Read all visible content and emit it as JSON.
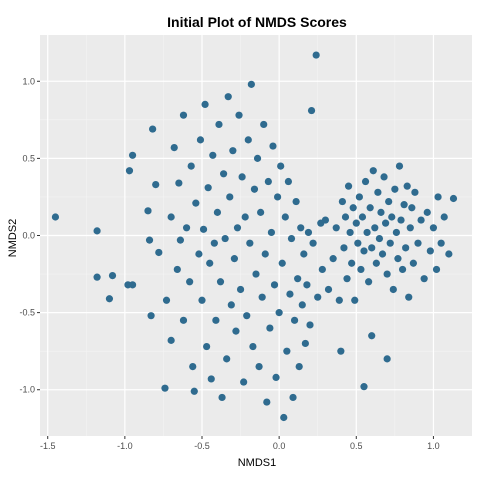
{
  "chart_data": {
    "type": "scatter",
    "title": "Initial Plot of NMDS Scores",
    "xlabel": "NMDS1",
    "ylabel": "NMDS2",
    "xlim": [
      -1.55,
      1.25
    ],
    "ylim": [
      -1.3,
      1.3
    ],
    "x_ticks": [
      -1.5,
      -1.0,
      -0.5,
      0.0,
      0.5,
      1.0
    ],
    "x_tick_labels": [
      "-1.5",
      "-1.0",
      "-0.5",
      "0.0",
      "0.5",
      "1.0"
    ],
    "y_ticks": [
      -1.0,
      -0.5,
      0.0,
      0.5,
      1.0
    ],
    "y_tick_labels": [
      "-1.0",
      "-0.5",
      "0.0",
      "0.5",
      "1.0"
    ],
    "grid": true,
    "legend": "none",
    "colors": {
      "point": "#2f6b8f",
      "panel": "#ebebeb",
      "grid_major": "#ffffff",
      "grid_minor": "#f4f4f4",
      "tick_text": "#4d4d4d"
    },
    "points": [
      {
        "x": -1.45,
        "y": 0.12
      },
      {
        "x": -1.18,
        "y": 0.03
      },
      {
        "x": -1.18,
        "y": -0.27
      },
      {
        "x": -1.1,
        "y": -0.41
      },
      {
        "x": -1.08,
        "y": -0.26
      },
      {
        "x": -0.98,
        "y": -0.32
      },
      {
        "x": -0.95,
        "y": -0.32
      },
      {
        "x": -0.95,
        "y": 0.52
      },
      {
        "x": -0.97,
        "y": 0.42
      },
      {
        "x": -0.85,
        "y": 0.16
      },
      {
        "x": -0.84,
        "y": -0.03
      },
      {
        "x": -0.83,
        "y": -0.52
      },
      {
        "x": -0.82,
        "y": 0.69
      },
      {
        "x": -0.8,
        "y": 0.33
      },
      {
        "x": -0.78,
        "y": -0.11
      },
      {
        "x": -0.74,
        "y": -0.99
      },
      {
        "x": -0.73,
        "y": -0.42
      },
      {
        "x": -0.7,
        "y": 0.12
      },
      {
        "x": -0.7,
        "y": -0.68
      },
      {
        "x": -0.68,
        "y": 0.57
      },
      {
        "x": -0.66,
        "y": -0.22
      },
      {
        "x": -0.65,
        "y": 0.34
      },
      {
        "x": -0.64,
        "y": -0.03
      },
      {
        "x": -0.62,
        "y": 0.78
      },
      {
        "x": -0.62,
        "y": -0.55
      },
      {
        "x": -0.6,
        "y": 0.05
      },
      {
        "x": -0.58,
        "y": -0.3
      },
      {
        "x": -0.57,
        "y": 0.45
      },
      {
        "x": -0.56,
        "y": -0.85
      },
      {
        "x": -0.55,
        "y": -1.01
      },
      {
        "x": -0.54,
        "y": 0.21
      },
      {
        "x": -0.52,
        "y": -0.12
      },
      {
        "x": -0.51,
        "y": 0.62
      },
      {
        "x": -0.5,
        "y": -0.42
      },
      {
        "x": -0.49,
        "y": 0.04
      },
      {
        "x": -0.48,
        "y": 0.85
      },
      {
        "x": -0.47,
        "y": -0.72
      },
      {
        "x": -0.46,
        "y": 0.31
      },
      {
        "x": -0.45,
        "y": -0.18
      },
      {
        "x": -0.44,
        "y": -0.93
      },
      {
        "x": -0.43,
        "y": 0.52
      },
      {
        "x": -0.42,
        "y": -0.05
      },
      {
        "x": -0.41,
        "y": -0.55
      },
      {
        "x": -0.4,
        "y": 0.15
      },
      {
        "x": -0.39,
        "y": 0.72
      },
      {
        "x": -0.38,
        "y": -0.3
      },
      {
        "x": -0.37,
        "y": -1.05
      },
      {
        "x": -0.36,
        "y": 0.4
      },
      {
        "x": -0.35,
        "y": -0.02
      },
      {
        "x": -0.34,
        "y": -0.8
      },
      {
        "x": -0.33,
        "y": 0.9
      },
      {
        "x": -0.32,
        "y": 0.25
      },
      {
        "x": -0.31,
        "y": -0.45
      },
      {
        "x": -0.3,
        "y": 0.55
      },
      {
        "x": -0.29,
        "y": -0.15
      },
      {
        "x": -0.28,
        "y": -0.62
      },
      {
        "x": -0.27,
        "y": 0.05
      },
      {
        "x": -0.26,
        "y": 0.78
      },
      {
        "x": -0.25,
        "y": -0.35
      },
      {
        "x": -0.24,
        "y": 0.38
      },
      {
        "x": -0.23,
        "y": -0.95
      },
      {
        "x": -0.22,
        "y": 0.12
      },
      {
        "x": -0.21,
        "y": -0.52
      },
      {
        "x": -0.2,
        "y": 0.62
      },
      {
        "x": -0.19,
        "y": -0.05
      },
      {
        "x": -0.18,
        "y": 0.98
      },
      {
        "x": -0.17,
        "y": -0.72
      },
      {
        "x": -0.16,
        "y": 0.3
      },
      {
        "x": -0.15,
        "y": -0.25
      },
      {
        "x": -0.14,
        "y": 0.5
      },
      {
        "x": -0.13,
        "y": -0.85
      },
      {
        "x": -0.12,
        "y": 0.15
      },
      {
        "x": -0.11,
        "y": -0.4
      },
      {
        "x": -0.1,
        "y": 0.72
      },
      {
        "x": -0.09,
        "y": -0.12
      },
      {
        "x": -0.08,
        "y": -1.08
      },
      {
        "x": -0.07,
        "y": 0.35
      },
      {
        "x": -0.06,
        "y": -0.6
      },
      {
        "x": -0.05,
        "y": 0.02
      },
      {
        "x": -0.04,
        "y": 0.58
      },
      {
        "x": -0.03,
        "y": -0.32
      },
      {
        "x": -0.02,
        "y": -0.92
      },
      {
        "x": -0.01,
        "y": 0.25
      },
      {
        "x": 0.0,
        "y": -0.5
      },
      {
        "x": 0.01,
        "y": 0.45
      },
      {
        "x": 0.02,
        "y": -0.18
      },
      {
        "x": 0.03,
        "y": -1.18
      },
      {
        "x": 0.04,
        "y": 0.12
      },
      {
        "x": 0.05,
        "y": -0.75
      },
      {
        "x": 0.06,
        "y": 0.35
      },
      {
        "x": 0.07,
        "y": -0.38
      },
      {
        "x": 0.08,
        "y": -0.02
      },
      {
        "x": 0.09,
        "y": -1.05
      },
      {
        "x": 0.1,
        "y": -0.55
      },
      {
        "x": 0.11,
        "y": 0.22
      },
      {
        "x": 0.12,
        "y": -0.28
      },
      {
        "x": 0.13,
        "y": -0.85
      },
      {
        "x": 0.14,
        "y": 0.05
      },
      {
        "x": 0.15,
        "y": -0.45
      },
      {
        "x": 0.16,
        "y": -0.12
      },
      {
        "x": 0.17,
        "y": -0.7
      },
      {
        "x": 0.18,
        "y": -0.32
      },
      {
        "x": 0.19,
        "y": 0.02
      },
      {
        "x": 0.2,
        "y": -0.58
      },
      {
        "x": 0.21,
        "y": 0.81
      },
      {
        "x": 0.22,
        "y": -0.05
      },
      {
        "x": 0.24,
        "y": 1.17
      },
      {
        "x": 0.25,
        "y": -0.4
      },
      {
        "x": 0.27,
        "y": 0.08
      },
      {
        "x": 0.28,
        "y": -0.22
      },
      {
        "x": 0.3,
        "y": 0.1
      },
      {
        "x": 0.32,
        "y": -0.35
      },
      {
        "x": 0.35,
        "y": -0.15
      },
      {
        "x": 0.37,
        "y": 0.05
      },
      {
        "x": 0.39,
        "y": -0.42
      },
      {
        "x": 0.4,
        "y": -0.75
      },
      {
        "x": 0.41,
        "y": 0.22
      },
      {
        "x": 0.42,
        "y": -0.08
      },
      {
        "x": 0.43,
        "y": 0.12
      },
      {
        "x": 0.44,
        "y": -0.28
      },
      {
        "x": 0.45,
        "y": 0.32
      },
      {
        "x": 0.46,
        "y": 0.02
      },
      {
        "x": 0.47,
        "y": -0.18
      },
      {
        "x": 0.48,
        "y": 0.18
      },
      {
        "x": 0.49,
        "y": -0.42
      },
      {
        "x": 0.5,
        "y": 0.08
      },
      {
        "x": 0.51,
        "y": -0.05
      },
      {
        "x": 0.52,
        "y": 0.25
      },
      {
        "x": 0.53,
        "y": -0.22
      },
      {
        "x": 0.54,
        "y": 0.12
      },
      {
        "x": 0.55,
        "y": -0.1
      },
      {
        "x": 0.56,
        "y": 0.35
      },
      {
        "x": 0.57,
        "y": 0.02
      },
      {
        "x": 0.58,
        "y": -0.3
      },
      {
        "x": 0.59,
        "y": 0.18
      },
      {
        "x": 0.6,
        "y": -0.08
      },
      {
        "x": 0.61,
        "y": 0.42
      },
      {
        "x": 0.62,
        "y": 0.05
      },
      {
        "x": 0.63,
        "y": -0.18
      },
      {
        "x": 0.64,
        "y": 0.28
      },
      {
        "x": 0.65,
        "y": -0.02
      },
      {
        "x": 0.66,
        "y": 0.15
      },
      {
        "x": 0.67,
        "y": -0.12
      },
      {
        "x": 0.68,
        "y": 0.38
      },
      {
        "x": 0.69,
        "y": 0.08
      },
      {
        "x": 0.7,
        "y": -0.25
      },
      {
        "x": 0.71,
        "y": 0.22
      },
      {
        "x": 0.72,
        "y": -0.05
      },
      {
        "x": 0.73,
        "y": 0.12
      },
      {
        "x": 0.74,
        "y": -0.35
      },
      {
        "x": 0.75,
        "y": 0.3
      },
      {
        "x": 0.76,
        "y": 0.02
      },
      {
        "x": 0.77,
        "y": -0.15
      },
      {
        "x": 0.78,
        "y": 0.45
      },
      {
        "x": 0.79,
        "y": 0.1
      },
      {
        "x": 0.8,
        "y": -0.22
      },
      {
        "x": 0.81,
        "y": 0.2
      },
      {
        "x": 0.82,
        "y": -0.08
      },
      {
        "x": 0.83,
        "y": 0.32
      },
      {
        "x": 0.84,
        "y": -0.4
      },
      {
        "x": 0.85,
        "y": 0.05
      },
      {
        "x": 0.86,
        "y": 0.18
      },
      {
        "x": 0.87,
        "y": -0.18
      },
      {
        "x": 0.88,
        "y": 0.28
      },
      {
        "x": 0.9,
        "y": -0.05
      },
      {
        "x": 0.92,
        "y": 0.1
      },
      {
        "x": 0.94,
        "y": -0.28
      },
      {
        "x": 0.96,
        "y": 0.15
      },
      {
        "x": 0.98,
        "y": -0.1
      },
      {
        "x": 1.0,
        "y": 0.05
      },
      {
        "x": 1.02,
        "y": -0.22
      },
      {
        "x": 1.03,
        "y": 0.25
      },
      {
        "x": 1.05,
        "y": -0.05
      },
      {
        "x": 1.07,
        "y": 0.12
      },
      {
        "x": 1.1,
        "y": -0.12
      },
      {
        "x": 1.13,
        "y": 0.24
      },
      {
        "x": 0.6,
        "y": -0.65
      },
      {
        "x": 0.7,
        "y": -0.8
      },
      {
        "x": 0.55,
        "y": -0.98
      }
    ]
  }
}
